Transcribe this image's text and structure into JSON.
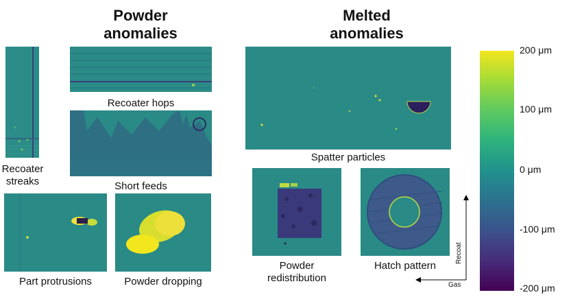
{
  "headings": {
    "powder": "Powder\nanomalies",
    "melted": "Melted\nanomalies"
  },
  "captions": {
    "recoater_streaks": "Recoater\nstreaks",
    "recoater_hops": "Recoater hops",
    "short_feeds": "Short feeds",
    "part_protrusions": "Part protrusions",
    "powder_dropping": "Powder dropping",
    "spatter_particles": "Spatter particles",
    "powder_redistribution": "Powder\nredistribution",
    "hatch_pattern": "Hatch pattern"
  },
  "axes": {
    "vertical": "Recoat",
    "horizontal": "Gas"
  },
  "colorbar": {
    "ticks": [
      "200 μm",
      "100 μm",
      "0 μm",
      "-100 μm",
      "-200 μm"
    ],
    "colors": [
      "#f2e61f",
      "#5ec962",
      "#21918c",
      "#3b528b",
      "#440154"
    ]
  },
  "colors": {
    "background_teal": "#2a8a86",
    "low_purple": "#3a3a7a",
    "high_yellow": "#eee03a"
  }
}
